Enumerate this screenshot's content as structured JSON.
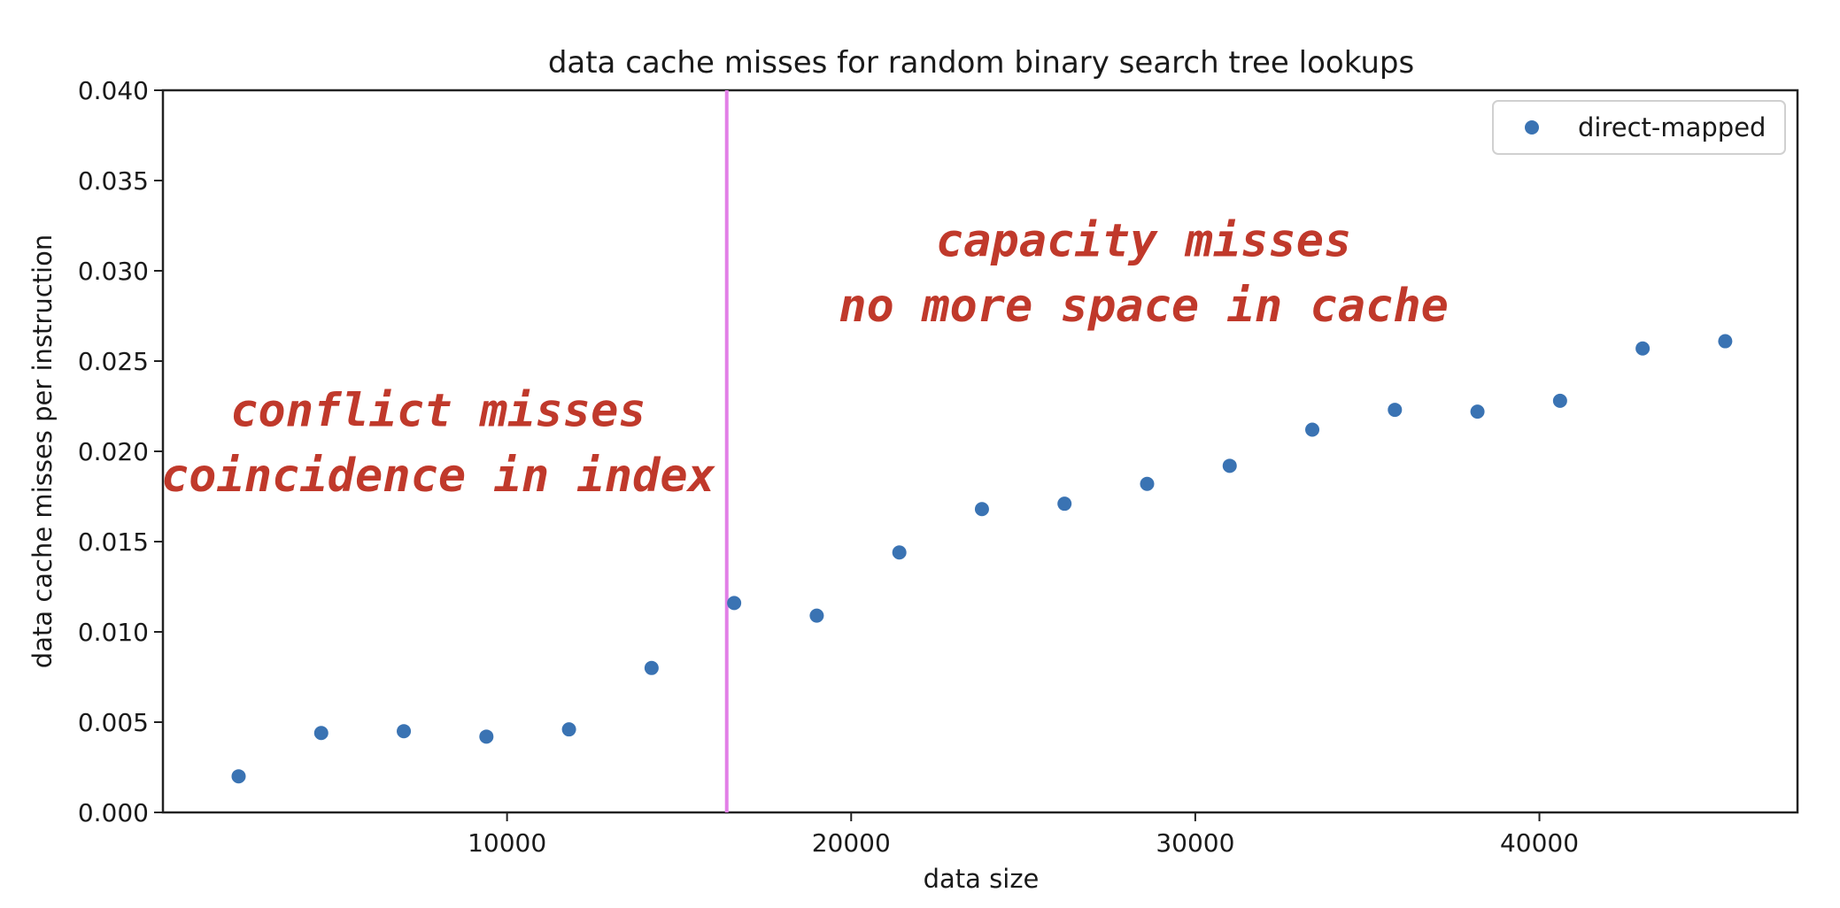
{
  "chart_data": {
    "type": "scatter",
    "title": "data cache misses for random binary search tree lookups",
    "xlabel": "data size",
    "ylabel": "data cache misses per instruction",
    "xlim": [
      0,
      47500
    ],
    "ylim": [
      0,
      0.04
    ],
    "xticks": [
      10000,
      20000,
      30000,
      40000
    ],
    "yticks": [
      0.0,
      0.005,
      0.01,
      0.015,
      0.02,
      0.025,
      0.03,
      0.035,
      0.04
    ],
    "xtick_labels": [
      "10000",
      "20000",
      "30000",
      "40000"
    ],
    "ytick_labels": [
      "0.000",
      "0.005",
      "0.010",
      "0.015",
      "0.020",
      "0.025",
      "0.030",
      "0.035",
      "0.040"
    ],
    "grid": false,
    "legend_position": "top-right",
    "series": [
      {
        "name": "direct-mapped",
        "color": "#3a73b3",
        "x": [
          2200,
          4600,
          7000,
          9400,
          11800,
          14200,
          16600,
          19000,
          21400,
          23800,
          26200,
          28600,
          31000,
          33400,
          35800,
          38200,
          40600,
          43000,
          45400
        ],
        "y": [
          0.002,
          0.0044,
          0.0045,
          0.0042,
          0.0046,
          0.008,
          0.0116,
          0.0109,
          0.0144,
          0.0168,
          0.0171,
          0.0182,
          0.0192,
          0.0212,
          0.0223,
          0.0222,
          0.0228,
          0.0257,
          0.0261
        ]
      }
    ],
    "vline": {
      "x": 16384,
      "color": "#e27fe7"
    },
    "annotations": [
      {
        "text": "conflict misses",
        "x": 8000,
        "y": 0.0214,
        "color": "#c0392b"
      },
      {
        "text": "coincidence in index",
        "x": 8000,
        "y": 0.0178,
        "color": "#c0392b"
      },
      {
        "text": "capacity misses",
        "x": 28500,
        "y": 0.0308,
        "color": "#c0392b"
      },
      {
        "text": "no more space in cache",
        "x": 28500,
        "y": 0.0272,
        "color": "#c0392b"
      }
    ]
  }
}
